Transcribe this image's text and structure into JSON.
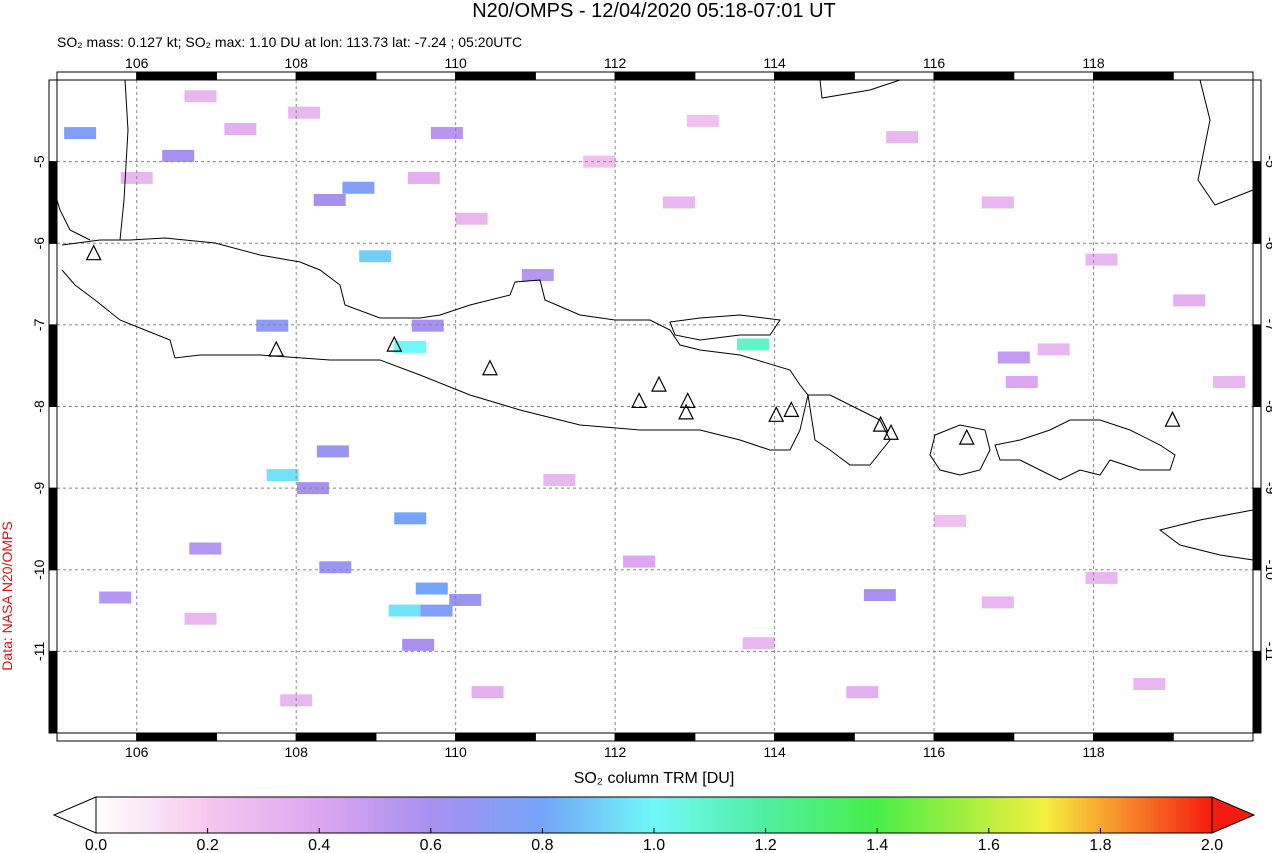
{
  "chart_data": {
    "type": "map",
    "title": "N20/OMPS - 12/04/2020 05:18-07:01 UT",
    "subtitle": "SO₂ mass: 0.127 kt; SO₂ max: 1.10 DU at lon: 113.73 lat: -7.24 ; 05:20UTC",
    "source": "Data: NASA N20/OMPS",
    "colorbar_label": "SO₂ column TRM [DU]",
    "xlim": [
      105,
      120
    ],
    "ylim": [
      -12,
      -4
    ],
    "xticks": [
      106,
      108,
      110,
      112,
      114,
      116,
      118
    ],
    "yticks": [
      -11,
      -10,
      -9,
      -8,
      -7,
      -6,
      -5
    ],
    "grid": true,
    "clim": [
      0,
      2
    ],
    "cticks": [
      {
        "value": 0,
        "label": "0.0"
      },
      0.2,
      0.4,
      0.6,
      0.8,
      {
        "value": 1,
        "label": "1.0"
      },
      1.2,
      1.4,
      1.6,
      1.8,
      {
        "value": 2,
        "label": "2.0"
      }
    ],
    "colorscale": [
      [
        0,
        "#ffffff"
      ],
      [
        0.2,
        "#f6c8ee"
      ],
      [
        0.4,
        "#dca6f0"
      ],
      [
        0.6,
        "#a890f0"
      ],
      [
        0.8,
        "#74a4f8"
      ],
      [
        1.0,
        "#70f8f8"
      ],
      [
        1.2,
        "#50eea0"
      ],
      [
        1.4,
        "#48ee48"
      ],
      [
        1.6,
        "#bcee40"
      ],
      [
        1.7,
        "#f4f040"
      ],
      [
        1.8,
        "#f8a830"
      ],
      [
        2.0,
        "#f41c10"
      ]
    ],
    "pixels": {
      "lon": [
        108.99,
        109.43,
        113.73,
        107.83,
        105.29,
        108.78,
        109.43,
        109.7,
        109.36,
        109.76,
        107.7,
        108.46,
        108.49,
        106.52,
        108.42,
        111.03,
        115.32,
        108.21,
        110.12,
        109.53,
        105.73,
        106.86,
        109.65,
        109.89,
        106.8,
        107.3,
        108.1,
        106.0,
        109.6,
        110.2,
        111.8,
        112.8,
        113.1,
        115.6,
        116.8,
        118.1,
        119.2,
        117.1,
        119.7,
        112.3,
        111.3,
        113.8,
        116.8,
        118.7,
        115.1,
        106.8,
        108.0,
        110.4,
        116.2,
        118.1,
        117.5,
        117.0
      ],
      "lat": [
        -6.16,
        -7.27,
        -7.24,
        -8.84,
        -4.65,
        -5.32,
        -9.37,
        -10.23,
        -10.5,
        -10.5,
        -7.01,
        -8.55,
        -9.97,
        -4.93,
        -5.47,
        -6.39,
        -10.31,
        -9.0,
        -10.37,
        -10.92,
        -10.34,
        -9.74,
        -7.01,
        -4.65,
        -4.2,
        -4.6,
        -4.4,
        -5.2,
        -5.2,
        -5.7,
        -5.0,
        -5.5,
        -4.5,
        -4.7,
        -5.5,
        -6.2,
        -6.7,
        -7.7,
        -7.7,
        -9.9,
        -8.9,
        -10.9,
        -10.4,
        -11.4,
        -11.5,
        -10.6,
        -11.6,
        -11.5,
        -9.4,
        -10.1,
        -7.3,
        -7.4
      ],
      "values": [
        0.9,
        1.0,
        1.1,
        0.95,
        0.75,
        0.75,
        0.8,
        0.8,
        0.95,
        0.75,
        0.7,
        0.65,
        0.65,
        0.6,
        0.6,
        0.55,
        0.6,
        0.6,
        0.65,
        0.6,
        0.55,
        0.55,
        0.6,
        0.55,
        0.3,
        0.35,
        0.3,
        0.3,
        0.35,
        0.3,
        0.25,
        0.3,
        0.25,
        0.3,
        0.3,
        0.3,
        0.35,
        0.4,
        0.3,
        0.4,
        0.3,
        0.3,
        0.3,
        0.3,
        0.35,
        0.3,
        0.3,
        0.35,
        0.25,
        0.3,
        0.3,
        0.5
      ]
    },
    "volcanoes": {
      "lon": [
        105.46,
        107.75,
        109.23,
        110.43,
        112.3,
        112.55,
        112.91,
        112.89,
        114.02,
        114.21,
        115.33,
        115.46,
        116.41,
        118.99
      ],
      "lat": [
        -6.14,
        -7.32,
        -7.26,
        -7.55,
        -7.95,
        -7.75,
        -7.95,
        -8.09,
        -8.12,
        -8.06,
        -8.24,
        -8.34,
        -8.4,
        -8.18
      ]
    }
  }
}
